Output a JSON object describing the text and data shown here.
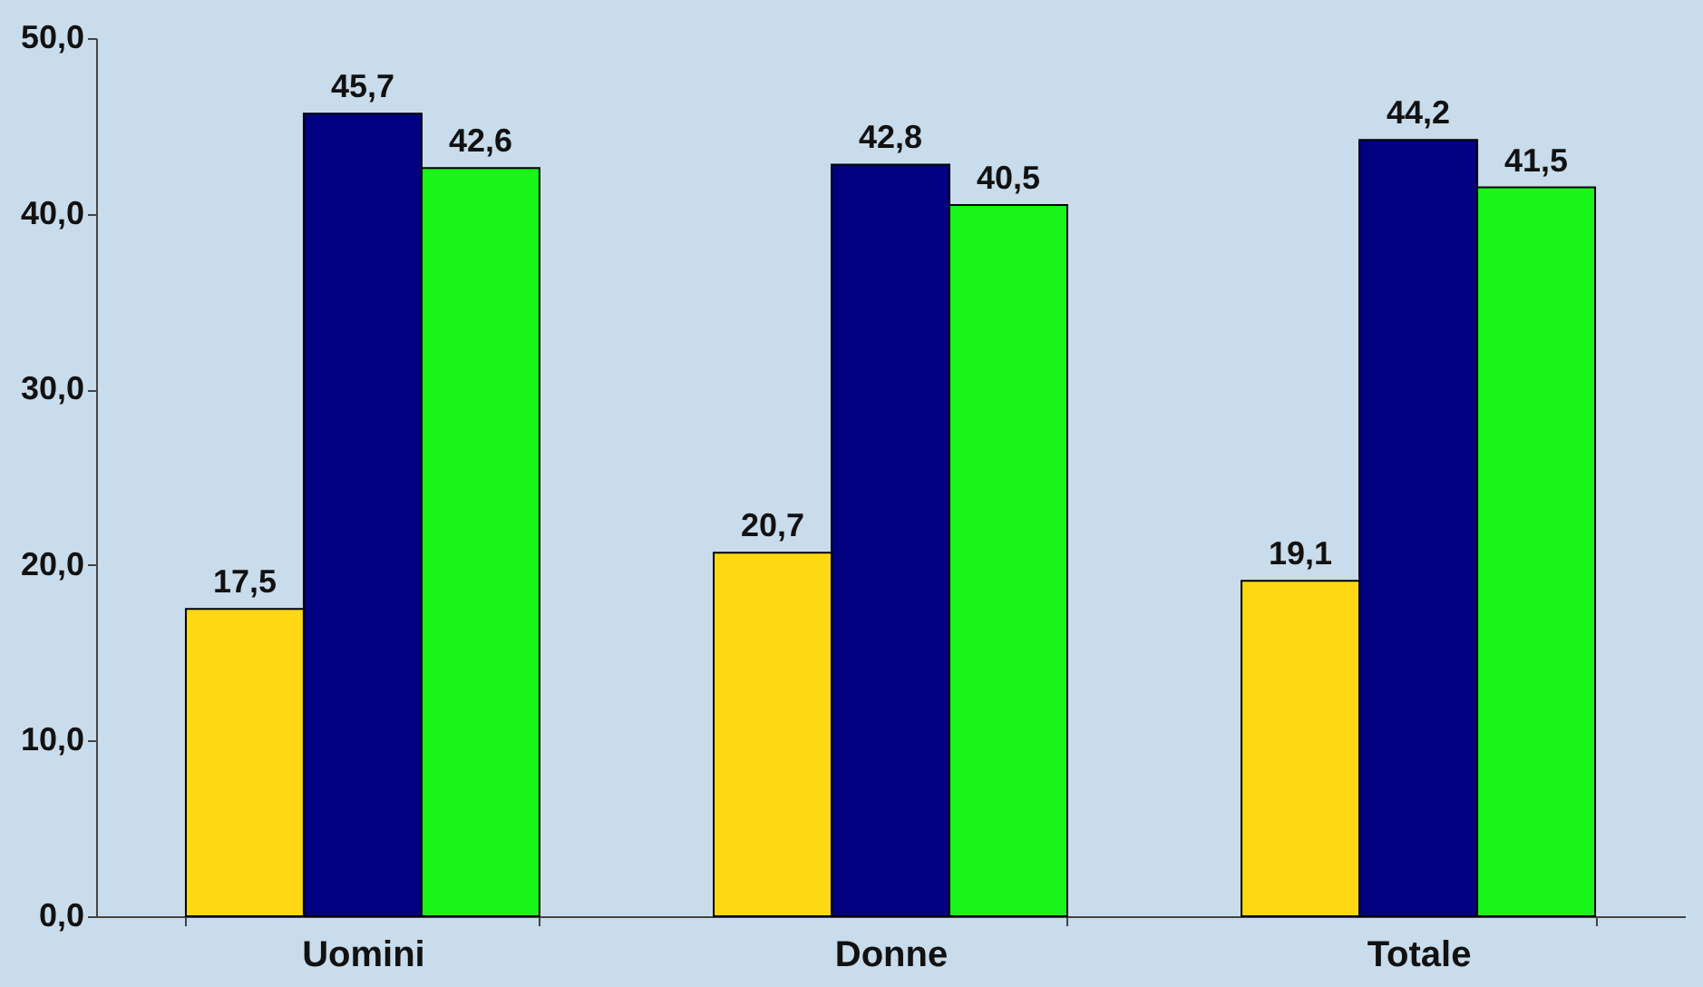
{
  "chart_data": {
    "type": "bar",
    "categories": [
      "Uomini",
      "Donne",
      "Totale"
    ],
    "series": [
      {
        "color": "#ffd814",
        "values": [
          17.5,
          20.7,
          19.1
        ],
        "value_labels": [
          "17,5",
          "20,7",
          "19,1"
        ]
      },
      {
        "color": "#000080",
        "values": [
          45.7,
          42.8,
          44.2
        ],
        "value_labels": [
          "45,7",
          "42,8",
          "44,2"
        ]
      },
      {
        "color": "#19f519",
        "values": [
          42.6,
          40.5,
          41.5
        ],
        "value_labels": [
          "42,6",
          "40,5",
          "41,5"
        ]
      }
    ],
    "ylim": [
      0,
      50
    ],
    "yticks": [
      {
        "value": 0,
        "label": "0,0"
      },
      {
        "value": 10,
        "label": "10,0"
      },
      {
        "value": 20,
        "label": "20,0"
      },
      {
        "value": 30,
        "label": "30,0"
      },
      {
        "value": 40,
        "label": "40,0"
      },
      {
        "value": 50,
        "label": "50,0"
      }
    ],
    "grid": false,
    "legend": false
  }
}
